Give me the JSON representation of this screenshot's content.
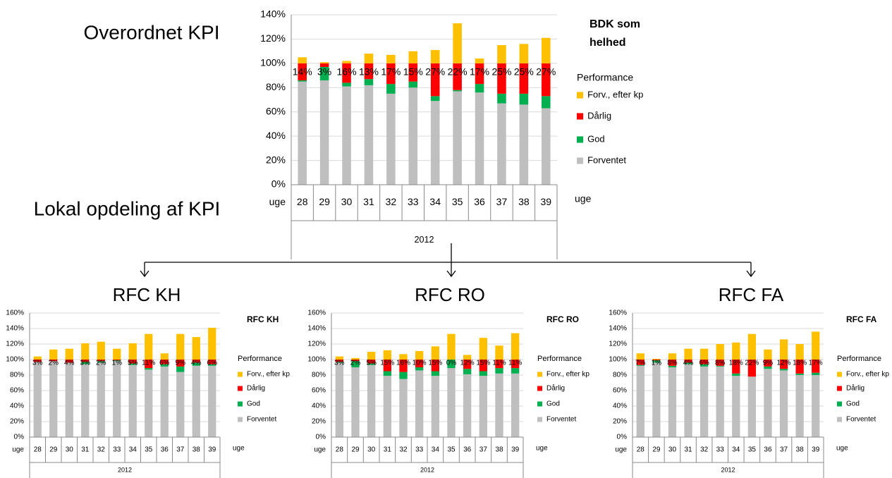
{
  "slide": {
    "overall_heading": "Overordnet KPI",
    "local_heading": "Lokal opdeling af KPI"
  },
  "chart_data": [
    {
      "type": "bar",
      "stacked": true,
      "title": "BDK som helhed",
      "legend_title": "Performance",
      "x_label": "uge",
      "group_label": "2012",
      "grid": true,
      "categories": [
        "28",
        "29",
        "30",
        "31",
        "32",
        "33",
        "34",
        "35",
        "36",
        "37",
        "38",
        "39"
      ],
      "ylim": [
        0,
        140
      ],
      "yticks": [
        {
          "value": 0,
          "label": "0%"
        },
        {
          "value": 20,
          "label": "20%"
        },
        {
          "value": 40,
          "label": "40%"
        },
        {
          "value": 60,
          "label": "60%"
        },
        {
          "value": 80,
          "label": "80%"
        },
        {
          "value": 100,
          "label": "100%"
        },
        {
          "value": 120,
          "label": "120%"
        },
        {
          "value": 140,
          "label": "140%"
        }
      ],
      "series": [
        {
          "name": "Forventet",
          "color": "#bfbfbf",
          "values": [
            85,
            86,
            81,
            82,
            75,
            80,
            69,
            77,
            76,
            67,
            66,
            63
          ]
        },
        {
          "name": "God",
          "color": "#00b050",
          "values": [
            1,
            11,
            3,
            5,
            8,
            5,
            4,
            1,
            7,
            8,
            9,
            10
          ]
        },
        {
          "name": "Dårlig",
          "color": "#ff0000",
          "values": [
            14,
            3,
            16,
            13,
            17,
            15,
            27,
            22,
            17,
            25,
            25,
            27
          ],
          "value_labels": [
            "14%",
            "3%",
            "16%",
            "13%",
            "17%",
            "15%",
            "27%",
            "22%",
            "17%",
            "25%",
            "25%",
            "27%"
          ]
        },
        {
          "name": "Forv., efter kp",
          "color": "#ffc000",
          "values": [
            5,
            1,
            2,
            8,
            7,
            10,
            11,
            33,
            4,
            15,
            16,
            21
          ]
        }
      ]
    },
    {
      "type": "bar",
      "stacked": true,
      "heading": "RFC KH",
      "title": "RFC KH",
      "legend_title": "Performance",
      "x_label": "uge",
      "group_label": "2012",
      "grid": true,
      "categories": [
        "28",
        "29",
        "30",
        "31",
        "32",
        "33",
        "34",
        "35",
        "36",
        "37",
        "38",
        "39"
      ],
      "ylim": [
        0,
        160
      ],
      "yticks": [
        {
          "value": 0,
          "label": "0%"
        },
        {
          "value": 20,
          "label": "20%"
        },
        {
          "value": 40,
          "label": "40%"
        },
        {
          "value": 60,
          "label": "60%"
        },
        {
          "value": 80,
          "label": "80%"
        },
        {
          "value": 100,
          "label": "100%"
        },
        {
          "value": 120,
          "label": "120%"
        },
        {
          "value": 140,
          "label": "140%"
        },
        {
          "value": 160,
          "label": "160%"
        }
      ],
      "series": [
        {
          "name": "Forventet",
          "color": "#bfbfbf",
          "values": [
            97,
            98,
            96,
            94,
            96,
            98,
            93,
            87,
            91,
            84,
            92,
            92
          ]
        },
        {
          "name": "God",
          "color": "#00b050",
          "values": [
            0,
            0,
            0,
            3,
            2,
            1,
            2,
            2,
            3,
            7,
            4,
            2
          ]
        },
        {
          "name": "Dårlig",
          "color": "#ff0000",
          "values": [
            3,
            2,
            4,
            3,
            2,
            1,
            5,
            11,
            6,
            9,
            4,
            6
          ],
          "value_labels": [
            "3%",
            "2%",
            "4%",
            "3%",
            "2%",
            "1%",
            "5%",
            "11%",
            "6%",
            "9%",
            "4%",
            "6%"
          ]
        },
        {
          "name": "Forv., efter kp",
          "color": "#ffc000",
          "values": [
            4,
            13,
            14,
            21,
            23,
            14,
            21,
            33,
            8,
            33,
            29,
            41
          ]
        }
      ]
    },
    {
      "type": "bar",
      "stacked": true,
      "heading": "RFC RO",
      "title": "RFC RO",
      "legend_title": "Performance",
      "x_label": "uge",
      "group_label": "2012",
      "grid": true,
      "categories": [
        "28",
        "29",
        "30",
        "31",
        "32",
        "33",
        "34",
        "35",
        "36",
        "37",
        "38",
        "39"
      ],
      "ylim": [
        0,
        160
      ],
      "yticks": [
        {
          "value": 0,
          "label": "0%"
        },
        {
          "value": 20,
          "label": "20%"
        },
        {
          "value": 40,
          "label": "40%"
        },
        {
          "value": 60,
          "label": "60%"
        },
        {
          "value": 80,
          "label": "80%"
        },
        {
          "value": 100,
          "label": "100%"
        },
        {
          "value": 120,
          "label": "120%"
        },
        {
          "value": 140,
          "label": "140%"
        },
        {
          "value": 160,
          "label": "160%"
        }
      ],
      "series": [
        {
          "name": "Forventet",
          "color": "#bfbfbf",
          "values": [
            96,
            90,
            93,
            79,
            75,
            86,
            79,
            89,
            81,
            79,
            82,
            82
          ]
        },
        {
          "name": "God",
          "color": "#00b050",
          "values": [
            1,
            8,
            2,
            6,
            9,
            4,
            6,
            11,
            7,
            6,
            7,
            7
          ]
        },
        {
          "name": "Dårlig",
          "color": "#ff0000",
          "values": [
            3,
            2,
            5,
            15,
            16,
            10,
            15,
            0,
            12,
            15,
            11,
            11
          ],
          "value_labels": [
            "3%",
            "2%",
            "5%",
            "15%",
            "16%",
            "10%",
            "15%",
            "0%",
            "12%",
            "15%",
            "11%",
            "11%"
          ]
        },
        {
          "name": "Forv., efter kp",
          "color": "#ffc000",
          "values": [
            4,
            2,
            10,
            12,
            7,
            11,
            17,
            33,
            6,
            28,
            18,
            34
          ]
        }
      ]
    },
    {
      "type": "bar",
      "stacked": true,
      "heading": "RFC FA",
      "title": "RFC FA",
      "legend_title": "Performance",
      "x_label": "uge",
      "group_label": "2012",
      "grid": true,
      "categories": [
        "28",
        "29",
        "30",
        "31",
        "32",
        "33",
        "34",
        "35",
        "36",
        "37",
        "38",
        "39"
      ],
      "ylim": [
        0,
        160
      ],
      "yticks": [
        {
          "value": 0,
          "label": "0%"
        },
        {
          "value": 20,
          "label": "20%"
        },
        {
          "value": 40,
          "label": "40%"
        },
        {
          "value": 60,
          "label": "60%"
        },
        {
          "value": 80,
          "label": "80%"
        },
        {
          "value": 100,
          "label": "100%"
        },
        {
          "value": 120,
          "label": "120%"
        },
        {
          "value": 140,
          "label": "140%"
        },
        {
          "value": 160,
          "label": "160%"
        }
      ],
      "series": [
        {
          "name": "Forventet",
          "color": "#bfbfbf",
          "values": [
            92,
            96,
            90,
            94,
            91,
            91,
            79,
            78,
            88,
            86,
            80,
            80
          ]
        },
        {
          "name": "God",
          "color": "#00b050",
          "values": [
            1,
            3,
            2,
            2,
            3,
            1,
            3,
            0,
            3,
            2,
            2,
            3
          ]
        },
        {
          "name": "Dårlig",
          "color": "#ff0000",
          "values": [
            7,
            1,
            8,
            4,
            6,
            8,
            18,
            22,
            9,
            12,
            18,
            17
          ],
          "value_labels": [
            "7%",
            "1%",
            "8%",
            "4%",
            "6%",
            "8%",
            "18%",
            "22%",
            "9%",
            "12%",
            "18%",
            "17%"
          ]
        },
        {
          "name": "Forv., efter kp",
          "color": "#ffc000",
          "values": [
            8,
            1,
            8,
            14,
            14,
            20,
            22,
            33,
            13,
            26,
            20,
            36
          ]
        }
      ]
    }
  ]
}
